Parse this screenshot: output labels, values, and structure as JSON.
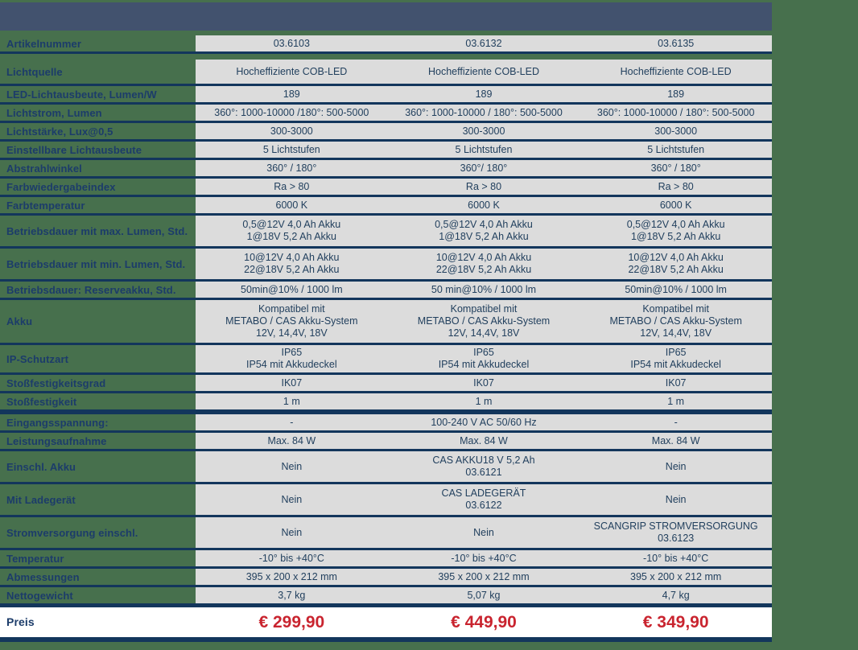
{
  "colors": {
    "page_bg": "#47704D",
    "header_bar": "#42526E",
    "row_line": "#13365C",
    "cell_bg": "#DCDCDC",
    "label_text": "#1C3C6A",
    "cell_text": "#22405E",
    "price_red": "#C9242F",
    "price_bg": "#FFFFFF"
  },
  "table": {
    "rows": [
      {
        "label": "Artikelnummer",
        "values": [
          "03.6103",
          "03.6132",
          "03.6135"
        ],
        "sep": "gap"
      },
      {
        "label": "Lichtquelle",
        "values": [
          "Hocheffiziente COB-LED",
          "Hocheffiziente COB-LED",
          "Hocheffiziente COB-LED"
        ],
        "tall": true
      },
      {
        "label": "LED-Lichtausbeute, Lumen/W",
        "values": [
          "189",
          "189",
          "189"
        ]
      },
      {
        "label": "Lichtstrom, Lumen",
        "values": [
          "360°: 1000-10000 /180°: 500-5000",
          "360°: 1000-10000 / 180°: 500-5000",
          "360°: 1000-10000 / 180°: 500-5000"
        ]
      },
      {
        "label": "Lichtstärke, Lux@0,5",
        "values": [
          "300-3000",
          "300-3000",
          "300-3000"
        ]
      },
      {
        "label": "Einstellbare Lichtausbeute",
        "values": [
          "5 Lichtstufen",
          "5 Lichtstufen",
          "5 Lichtstufen"
        ]
      },
      {
        "label": "Abstrahlwinkel",
        "values": [
          "360° / 180°",
          "360°/ 180°",
          "360° / 180°"
        ]
      },
      {
        "label": "Farbwiedergabeindex",
        "values": [
          "Ra > 80",
          "Ra > 80",
          "Ra > 80"
        ]
      },
      {
        "label": "Farbtemperatur",
        "values": [
          "6000 K",
          "6000 K",
          "6000 K"
        ]
      },
      {
        "label": "Betriebsdauer mit max. Lumen, Std.",
        "values": [
          "0,5@12V 4,0 Ah Akku\n1@18V 5,2 Ah Akku",
          "0,5@12V 4,0 Ah Akku\n1@18V 5,2 Ah Akku",
          "0,5@12V 4,0 Ah Akku\n1@18V 5,2 Ah Akku"
        ],
        "pad2": true
      },
      {
        "label": "Betriebsdauer mit min. Lumen, Std.",
        "values": [
          "10@12V 4,0 Ah Akku\n22@18V 5,2 Ah Akku",
          "10@12V 4,0 Ah Akku\n22@18V 5,2 Ah Akku",
          "10@12V 4,0 Ah Akku\n22@18V 5,2 Ah Akku"
        ],
        "pad2": true
      },
      {
        "label": "Betriebsdauer: Reserveakku, Std.",
        "values": [
          "50min@10% / 1000 lm",
          "50 min@10% / 1000 lm",
          "50min@10% / 1000 lm"
        ]
      },
      {
        "label": "Akku",
        "values": [
          "Kompatibel mit\nMETABO / CAS Akku-System\n12V, 14,4V, 18V",
          "Kompatibel mit\nMETABO / CAS Akku-System\n12V, 14,4V, 18V",
          "Kompatibel mit\nMETABO / CAS Akku-System\n12V, 14,4V, 18V"
        ],
        "pad2": true
      },
      {
        "label": "IP-Schutzart",
        "values": [
          "IP65\nIP54 mit Akkudeckel",
          "IP65\nIP54 mit Akkudeckel",
          "IP65\nIP54 mit Akkudeckel"
        ]
      },
      {
        "label": "Stoßfestigkeitsgrad",
        "values": [
          "IK07",
          "IK07",
          "IK07"
        ]
      },
      {
        "label": "Stoßfestigkeit",
        "values": [
          "1 m",
          "1 m",
          "1 m"
        ],
        "sep": "thick"
      },
      {
        "label": "Eingangsspannung:",
        "values": [
          "-",
          "100-240 V AC 50/60 Hz",
          "-"
        ]
      },
      {
        "label": "Leistungsaufnahme",
        "values": [
          "Max. 84 W",
          "Max. 84 W",
          "Max. 84 W"
        ]
      },
      {
        "label": "Einschl. Akku",
        "values": [
          "Nein",
          "CAS AKKU18 V 5,2 Ah\n03.6121",
          "Nein"
        ],
        "pad2": true
      },
      {
        "label": "Mit Ladegerät",
        "values": [
          "Nein",
          "CAS LADEGERÄT\n03.6122",
          "Nein"
        ],
        "pad2": true
      },
      {
        "label": "Stromversorgung einschl.",
        "values": [
          "Nein",
          "Nein",
          "SCANGRIP STROMVERSORGUNG\n03.6123"
        ],
        "pad2": true
      },
      {
        "label": "Temperatur",
        "values": [
          "-10° bis +40°C",
          "-10° bis +40°C",
          "-10° bis +40°C"
        ]
      },
      {
        "label": "Abmessungen",
        "values": [
          "395 x 200 x 212 mm",
          "395 x 200 x 212 mm",
          "395 x 200 x 212 mm"
        ]
      },
      {
        "label": "Nettogewicht",
        "values": [
          "3,7 kg",
          "5,07 kg",
          "4,7 kg"
        ],
        "sep": "semithick"
      },
      {
        "label": "Preis",
        "values": [
          "€ 299,90",
          "€ 449,90",
          "€ 349,90"
        ],
        "price": true
      }
    ]
  }
}
